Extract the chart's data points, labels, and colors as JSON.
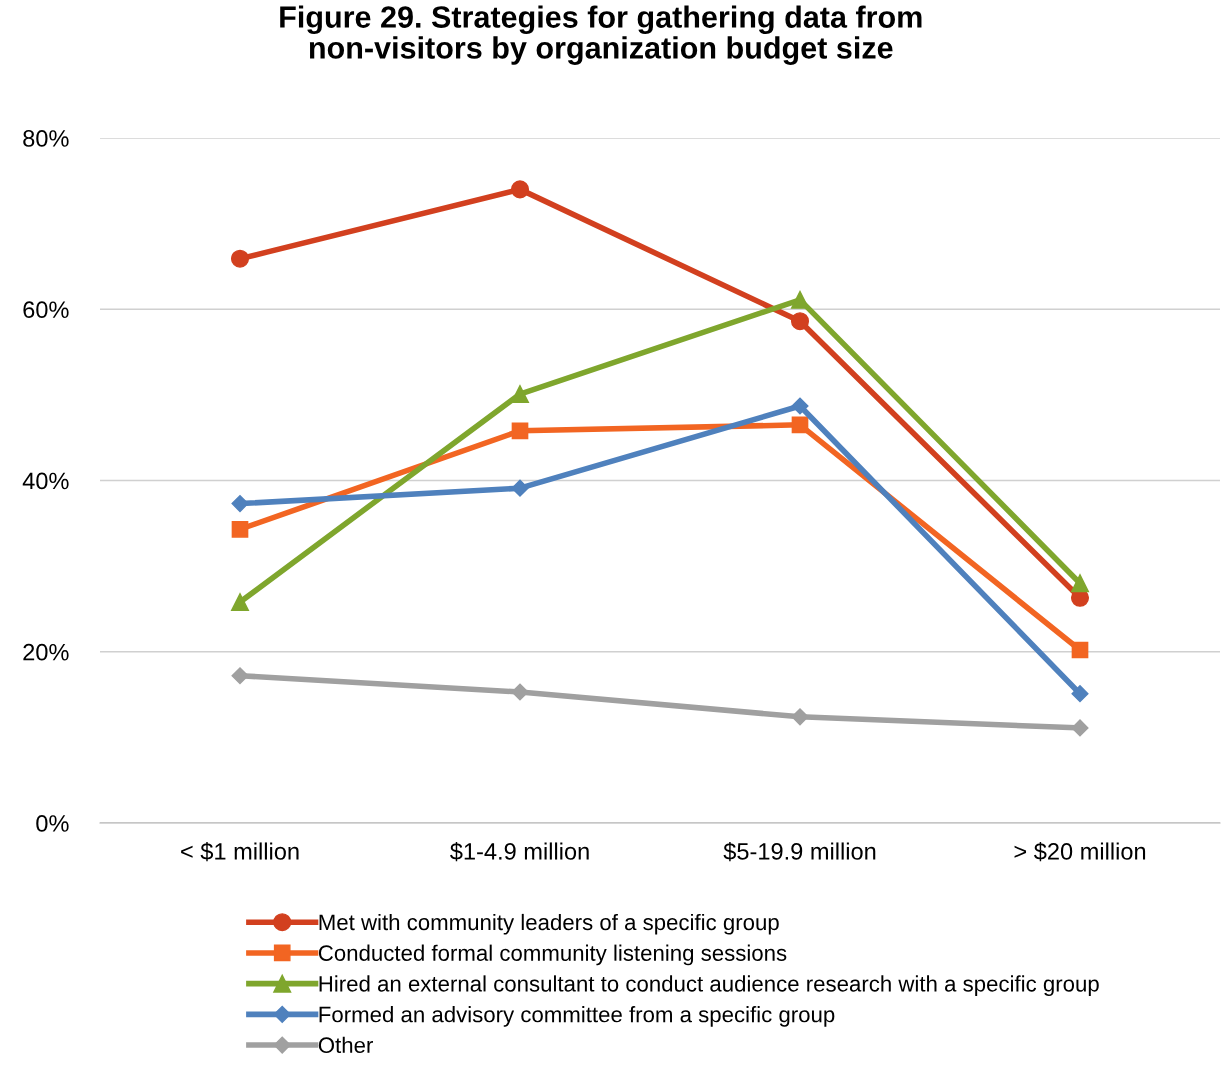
{
  "chart_data": {
    "type": "line",
    "title": "Figure 29. Strategies for gathering data from\nnon-visitors by organization budget size",
    "categories": [
      "< $1 million",
      "$1-4.9 million",
      "$5-19.9 million",
      "> $20 million"
    ],
    "series": [
      {
        "name": "Met with community leaders of a specific group",
        "color": "#d2401f",
        "marker": "circle",
        "values": [
          65.9,
          74.0,
          58.6,
          26.3
        ]
      },
      {
        "name": "Conducted formal community listening sessions",
        "color": "#f26522",
        "marker": "square",
        "values": [
          34.3,
          45.8,
          46.5,
          20.2
        ]
      },
      {
        "name": "Hired an external consultant to conduct audience research with a specific group",
        "color": "#7fa62d",
        "marker": "triangle",
        "values": [
          25.8,
          50.1,
          61.1,
          28.0
        ]
      },
      {
        "name": "Formed an advisory committee from a specific group",
        "color": "#4f81bd",
        "marker": "diamond",
        "values": [
          37.3,
          39.1,
          48.7,
          15.1
        ]
      },
      {
        "name": "Other",
        "color": "#a0a0a0",
        "marker": "diamond",
        "values": [
          17.2,
          15.3,
          12.4,
          11.1
        ]
      }
    ],
    "ylim": [
      0,
      80
    ],
    "yticks": [
      {
        "value": 0,
        "label": "0%"
      },
      {
        "value": 20,
        "label": "20%"
      },
      {
        "value": 40,
        "label": "40%"
      },
      {
        "value": 60,
        "label": "60%"
      },
      {
        "value": 80,
        "label": "80%"
      }
    ],
    "grid": "y",
    "legend": "bottom",
    "line_style": "solid"
  }
}
